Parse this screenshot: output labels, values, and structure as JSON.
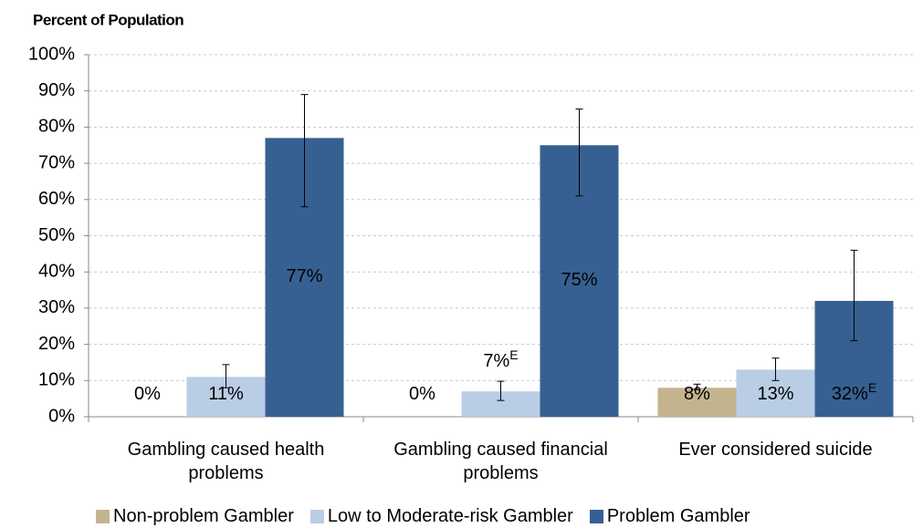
{
  "chart_data": {
    "type": "bar",
    "title": "Percent of Population",
    "categories": [
      "Gambling caused health problems",
      "Gambling caused financial problems",
      "Ever considered suicide"
    ],
    "series": [
      {
        "name": "Non-problem Gambler",
        "color": "#c4b48e",
        "values": [
          0,
          0,
          8
        ],
        "value_labels": [
          "0%",
          "0%",
          "8%"
        ],
        "label_notes": [
          null,
          null,
          null
        ],
        "ci_low": [
          null,
          null,
          7.5
        ],
        "ci_high": [
          null,
          null,
          9
        ]
      },
      {
        "name": "Low to Moderate-risk Gambler",
        "color": "#b9cde5",
        "values": [
          11,
          7,
          13
        ],
        "value_labels": [
          "11%",
          "7%",
          "13%"
        ],
        "label_notes": [
          null,
          "E",
          null
        ],
        "ci_low": [
          8,
          4.5,
          10
        ],
        "ci_high": [
          14.4,
          9.8,
          16.2
        ]
      },
      {
        "name": "Problem Gambler",
        "color": "#376092",
        "values": [
          77,
          75,
          32
        ],
        "value_labels": [
          "77%",
          "75%",
          "32%"
        ],
        "label_notes": [
          null,
          null,
          "E"
        ],
        "ci_low": [
          58,
          61,
          21
        ],
        "ci_high": [
          89,
          85,
          46
        ]
      }
    ],
    "ylim": [
      0,
      100
    ],
    "yticks": [
      {
        "value": 0,
        "label": "0%"
      },
      {
        "value": 10,
        "label": "10%"
      },
      {
        "value": 20,
        "label": "20%"
      },
      {
        "value": 30,
        "label": "30%"
      },
      {
        "value": 40,
        "label": "40%"
      },
      {
        "value": 50,
        "label": "50%"
      },
      {
        "value": 60,
        "label": "60%"
      },
      {
        "value": 70,
        "label": "70%"
      },
      {
        "value": 80,
        "label": "80%"
      },
      {
        "value": 90,
        "label": "90%"
      },
      {
        "value": 100,
        "label": "100%"
      }
    ],
    "grid": true
  }
}
